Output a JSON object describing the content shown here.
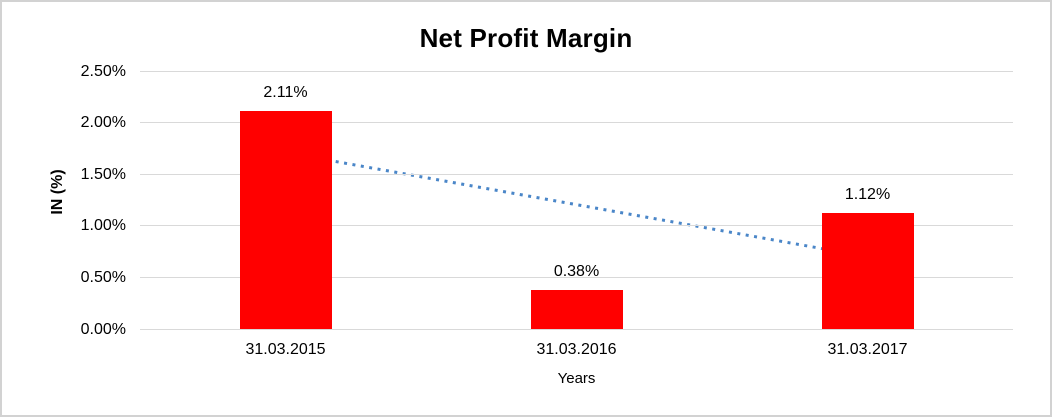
{
  "chart_data": {
    "type": "bar",
    "title": "Net Profit Margin",
    "categories": [
      "31.03.2015",
      "31.03.2016",
      "31.03.2017"
    ],
    "values": [
      2.11,
      0.38,
      1.12
    ],
    "data_labels": [
      "2.11%",
      "0.38%",
      "1.12%"
    ],
    "xlabel": "Years",
    "ylabel": "IN (%)",
    "y_ticks": [
      {
        "label": "0.00%",
        "value": 0
      },
      {
        "label": "0.50%",
        "value": 0.5
      },
      {
        "label": "1.00%",
        "value": 1
      },
      {
        "label": "1.50%",
        "value": 1.5
      },
      {
        "label": "2.00%",
        "value": 2
      },
      {
        "label": "2.50%",
        "value": 2.5
      }
    ],
    "ylim": [
      0,
      2.5
    ],
    "grid": true,
    "legend": "none",
    "colors": {
      "bar": "#ff0000",
      "trendline": "#4a86c8",
      "gridline": "#d9d9d9",
      "text": "#000000",
      "frame_border": "#d2d2d2"
    },
    "trendline": {
      "type": "linear",
      "style": "dotted",
      "start_value": 1.71,
      "end_value": 0.7
    }
  }
}
